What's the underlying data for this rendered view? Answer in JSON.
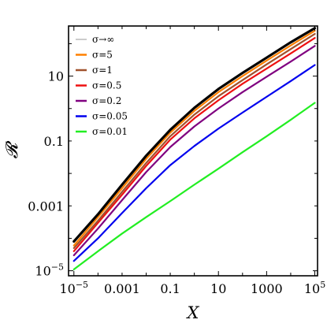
{
  "chart_data": {
    "type": "line",
    "xlabel": "X",
    "ylabel": "𝓡",
    "xscale": "log",
    "yscale": "log",
    "xlim": [
      6e-06,
      130000.0
    ],
    "ylim": [
      7e-06,
      350
    ],
    "x_ticks": [
      {
        "value": 1e-05,
        "base": "10",
        "exp": "−5"
      },
      {
        "value": 0.001,
        "text": "0.001"
      },
      {
        "value": 0.1,
        "text": "0.1"
      },
      {
        "value": 10,
        "text": "10"
      },
      {
        "value": 1000,
        "text": "1000"
      },
      {
        "value": 100000.0,
        "base": "10",
        "exp": "5"
      }
    ],
    "y_ticks": [
      {
        "value": 1e-05,
        "base": "10",
        "exp": "−5"
      },
      {
        "value": 0.001,
        "text": "0.001"
      },
      {
        "value": 0.1,
        "text": "0.1"
      },
      {
        "value": 10,
        "text": "10"
      }
    ],
    "legend": {
      "position": "top-left",
      "entries": [
        {
          "label": "σ→∞",
          "color": "#aaaaaa"
        },
        {
          "label": "σ=5",
          "color": "#ff8000"
        },
        {
          "label": "σ=1",
          "color": "#a0522d"
        },
        {
          "label": "σ=0.5",
          "color": "#ee1111"
        },
        {
          "label": "σ=0.2",
          "color": "#800080"
        },
        {
          "label": "σ=0.05",
          "color": "#0000ee"
        },
        {
          "label": "σ=0.01",
          "color": "#22ee22"
        }
      ]
    },
    "series": [
      {
        "name": "σ→∞",
        "color": "#000000",
        "x": [
          1e-05,
          0.0001,
          0.001,
          0.01,
          0.1,
          1,
          10,
          100,
          1000,
          10000.0,
          100000.0
        ],
        "y": [
          8e-05,
          0.00055,
          0.0045,
          0.035,
          0.22,
          1.05,
          4.0,
          12.5,
          37,
          110,
          300
        ]
      },
      {
        "name": "σ=5",
        "color": "#ff8000",
        "x": [
          1e-05,
          0.0001,
          0.001,
          0.01,
          0.1,
          1,
          10,
          100,
          1000,
          10000.0,
          100000.0
        ],
        "y": [
          6e-05,
          0.00045,
          0.0035,
          0.028,
          0.18,
          0.85,
          3.2,
          10,
          30,
          88,
          250
        ]
      },
      {
        "name": "σ=1",
        "color": "#a0522d",
        "x": [
          1e-05,
          0.0001,
          0.001,
          0.01,
          0.1,
          1,
          10,
          100,
          1000,
          10000.0,
          100000.0
        ],
        "y": [
          5e-05,
          0.00035,
          0.0027,
          0.021,
          0.14,
          0.65,
          2.4,
          7.5,
          23,
          68,
          200
        ]
      },
      {
        "name": "σ=0.5",
        "color": "#ee1111",
        "x": [
          1e-05,
          0.0001,
          0.001,
          0.01,
          0.1,
          1,
          10,
          100,
          1000,
          10000.0,
          100000.0
        ],
        "y": [
          4e-05,
          0.0003,
          0.0022,
          0.017,
          0.11,
          0.5,
          1.8,
          5.8,
          17,
          50,
          150
        ]
      },
      {
        "name": "σ=0.2",
        "color": "#800080",
        "x": [
          1e-05,
          0.0001,
          0.001,
          0.01,
          0.1,
          1,
          10,
          100,
          1000,
          10000.0,
          100000.0
        ],
        "y": [
          3e-05,
          0.0002,
          0.0015,
          0.011,
          0.065,
          0.28,
          1.0,
          3.2,
          9.5,
          28,
          85
        ]
      },
      {
        "name": "σ=0.05",
        "color": "#0000ee",
        "x": [
          1e-05,
          0.0001,
          0.001,
          0.01,
          0.1,
          1,
          10,
          100,
          1000,
          10000.0,
          100000.0
        ],
        "y": [
          2e-05,
          0.0001,
          0.0006,
          0.0035,
          0.018,
          0.07,
          0.24,
          0.75,
          2.3,
          7.0,
          22
        ]
      },
      {
        "name": "σ=0.01",
        "color": "#22ee22",
        "x": [
          1e-05,
          0.0001,
          0.001,
          0.01,
          0.1,
          1,
          10,
          100,
          1000,
          10000.0,
          100000.0
        ],
        "y": [
          1.1e-05,
          4e-05,
          0.00014,
          0.00045,
          0.0014,
          0.0045,
          0.014,
          0.045,
          0.14,
          0.45,
          1.5
        ]
      }
    ]
  }
}
